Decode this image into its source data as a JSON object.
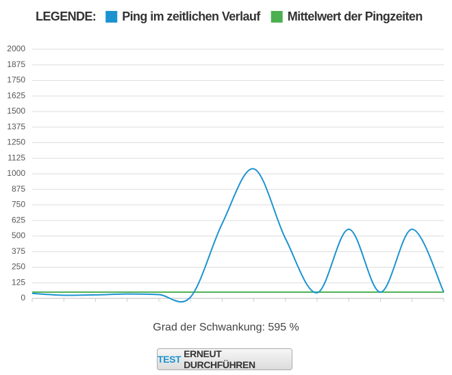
{
  "chart_data": {
    "type": "line",
    "legend_title": "LEGENDE:",
    "categories": [
      null,
      null,
      null,
      null,
      null,
      null,
      null,
      null,
      null,
      null,
      null,
      null,
      null,
      null
    ],
    "series": [
      {
        "name": "Ping im zeitlichen Verlauf",
        "color": "#1a93d0",
        "smooth": true,
        "values": [
          40,
          25,
          28,
          35,
          30,
          10,
          600,
          1040,
          480,
          45,
          555,
          50,
          555,
          50
        ]
      },
      {
        "name": "Mittelwert der Pingzeiten",
        "color": "#4caf50",
        "smooth": false,
        "values": [
          50,
          50,
          50,
          50,
          50,
          50,
          50,
          50,
          50,
          50,
          50,
          50,
          50,
          50
        ]
      }
    ],
    "ylim": [
      0,
      2000
    ],
    "yticks": [
      0,
      125,
      250,
      375,
      500,
      625,
      750,
      875,
      1000,
      1125,
      1250,
      1375,
      1500,
      1625,
      1750,
      1875,
      2000
    ],
    "grid": true
  },
  "summary": "Grad der Schwankung: 595 %",
  "button": {
    "highlight": "TEST",
    "text": "ERNEUT DURCHFÜHREN"
  }
}
